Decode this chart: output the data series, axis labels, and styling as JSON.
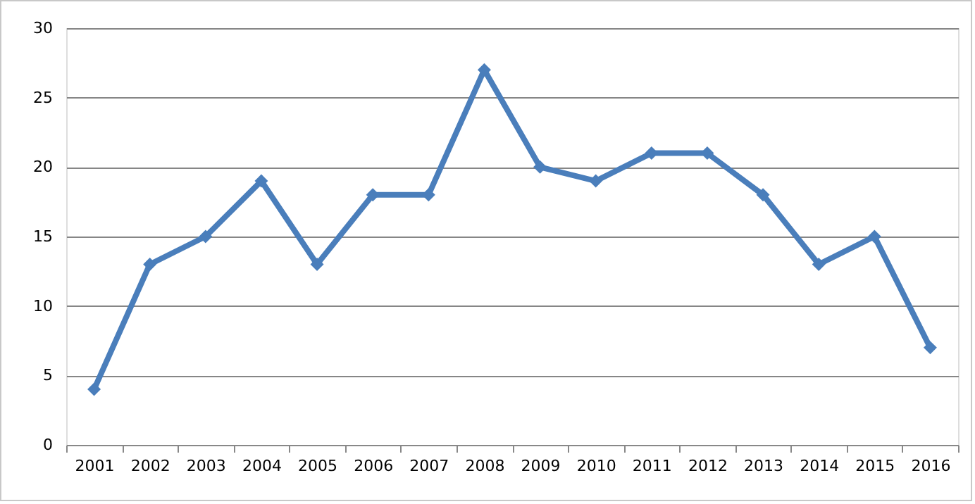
{
  "chart_data": {
    "type": "line",
    "categories": [
      "2001",
      "2002",
      "2003",
      "2004",
      "2005",
      "2006",
      "2007",
      "2008",
      "2009",
      "2010",
      "2011",
      "2012",
      "2013",
      "2014",
      "2015",
      "2016"
    ],
    "series": [
      {
        "color": "#4a7ebb",
        "values": [
          4,
          13,
          15,
          19,
          13,
          18,
          18,
          27,
          20,
          19,
          21,
          21,
          18,
          13,
          15,
          7
        ]
      }
    ],
    "ylim": [
      0,
      30
    ],
    "yticks": [
      0,
      5,
      10,
      15,
      20,
      25,
      30
    ],
    "grid": "y",
    "marker": "diamond",
    "line_style": "solid"
  }
}
